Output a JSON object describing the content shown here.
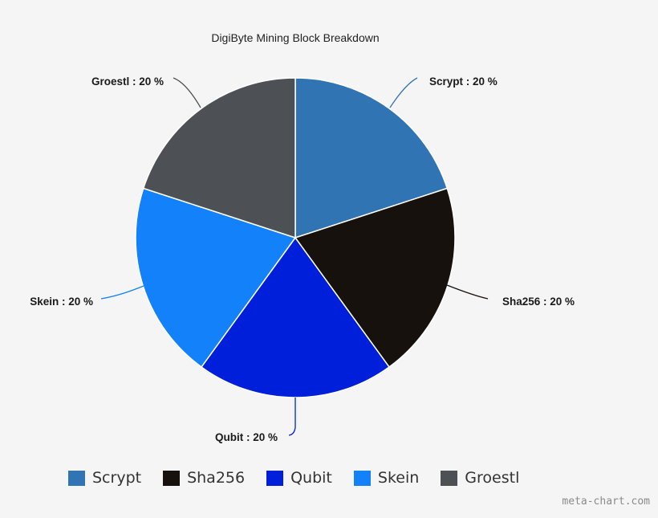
{
  "chart_data": {
    "type": "pie",
    "title": "DigiByte Mining Block Breakdown",
    "categories": [
      "Scrypt",
      "Sha256",
      "Qubit",
      "Skein",
      "Groestl"
    ],
    "values": [
      20,
      20,
      20,
      20,
      20
    ],
    "unit": "%",
    "colors": [
      "#3174b4",
      "#16110d",
      "#001fdb",
      "#1382fa",
      "#4d5155"
    ],
    "labels": [
      "Scrypt : 20 %",
      "Sha256 : 20 %",
      "Qubit : 20 %",
      "Skein : 20 %",
      "Groestl : 20 %"
    ],
    "start_angle_deg": 0,
    "direction": "clockwise",
    "legend_position": "bottom"
  },
  "legend": {
    "items": [
      {
        "label": "Scrypt",
        "color": "#3174b4"
      },
      {
        "label": "Sha256",
        "color": "#16110d"
      },
      {
        "label": "Qubit",
        "color": "#001fdb"
      },
      {
        "label": "Skein",
        "color": "#1382fa"
      },
      {
        "label": "Groestl",
        "color": "#4d5155"
      }
    ]
  },
  "watermark": "meta-chart.com"
}
